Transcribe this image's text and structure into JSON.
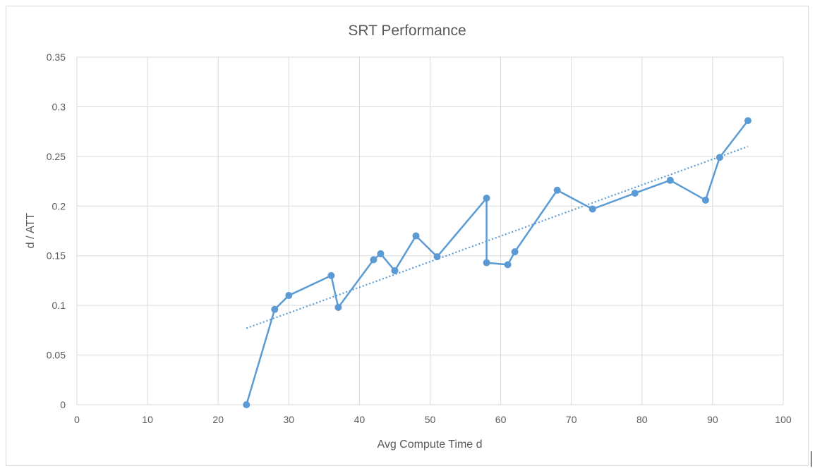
{
  "chart_data": {
    "type": "scatter",
    "title": "SRT Performance",
    "xlabel": "Avg Compute Time d",
    "ylabel": "d / ATT",
    "xlim": [
      0,
      100
    ],
    "ylim": [
      0,
      0.35
    ],
    "xticks": [
      "0",
      "10",
      "20",
      "30",
      "40",
      "50",
      "60",
      "70",
      "80",
      "90",
      "100"
    ],
    "yticks": [
      "0",
      "0.05",
      "0.1",
      "0.15",
      "0.2",
      "0.25",
      "0.3",
      "0.35"
    ],
    "grid": true,
    "legend": "none",
    "series": [
      {
        "style": "line-markers",
        "color": "#5b9bd5",
        "x": [
          24,
          28,
          30,
          36,
          37,
          42,
          43,
          45,
          48,
          51,
          58,
          58,
          61,
          62,
          68,
          73,
          79,
          84,
          89,
          91,
          95
        ],
        "y": [
          0,
          0.096,
          0.11,
          0.13,
          0.098,
          0.146,
          0.152,
          0.135,
          0.17,
          0.149,
          0.208,
          0.143,
          0.141,
          0.154,
          0.216,
          0.197,
          0.213,
          0.226,
          0.206,
          0.249,
          0.286
        ]
      }
    ],
    "trendline": {
      "type": "linear",
      "style": "dotted",
      "color": "#5b9bd5",
      "x": [
        24,
        95
      ],
      "y": [
        0.077,
        0.26
      ]
    }
  }
}
